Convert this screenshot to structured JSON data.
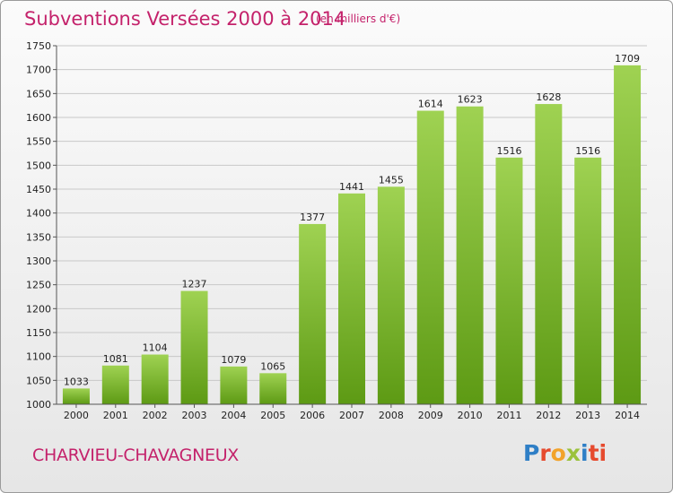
{
  "header": {
    "title": "Subventions Versées 2000 à 2014",
    "subtitle": "(en milliers d'€)"
  },
  "footer": {
    "commune": "CHARVIEU-CHAVAGNEUX",
    "logo": [
      "P",
      "r",
      "o",
      "x",
      "i",
      "ti"
    ]
  },
  "colors": {
    "title": "#c4226b",
    "bar_top": "#9fd252",
    "bar_bottom": "#5d9a14",
    "grid": "#c8c8c8"
  },
  "chart_data": {
    "type": "bar",
    "categories": [
      "2000",
      "2001",
      "2002",
      "2003",
      "2004",
      "2005",
      "2006",
      "2007",
      "2008",
      "2009",
      "2010",
      "2011",
      "2012",
      "2013",
      "2014"
    ],
    "values": [
      1033,
      1081,
      1104,
      1237,
      1079,
      1065,
      1377,
      1441,
      1455,
      1614,
      1623,
      1516,
      1628,
      1516,
      1709
    ],
    "title": "Subventions Versées 2000 à 2014",
    "ylim": [
      1000,
      1750
    ],
    "yticks": [
      1000,
      1050,
      1100,
      1150,
      1200,
      1250,
      1300,
      1350,
      1400,
      1450,
      1500,
      1550,
      1600,
      1650,
      1700,
      1750
    ],
    "grid": true,
    "legend": "none"
  }
}
